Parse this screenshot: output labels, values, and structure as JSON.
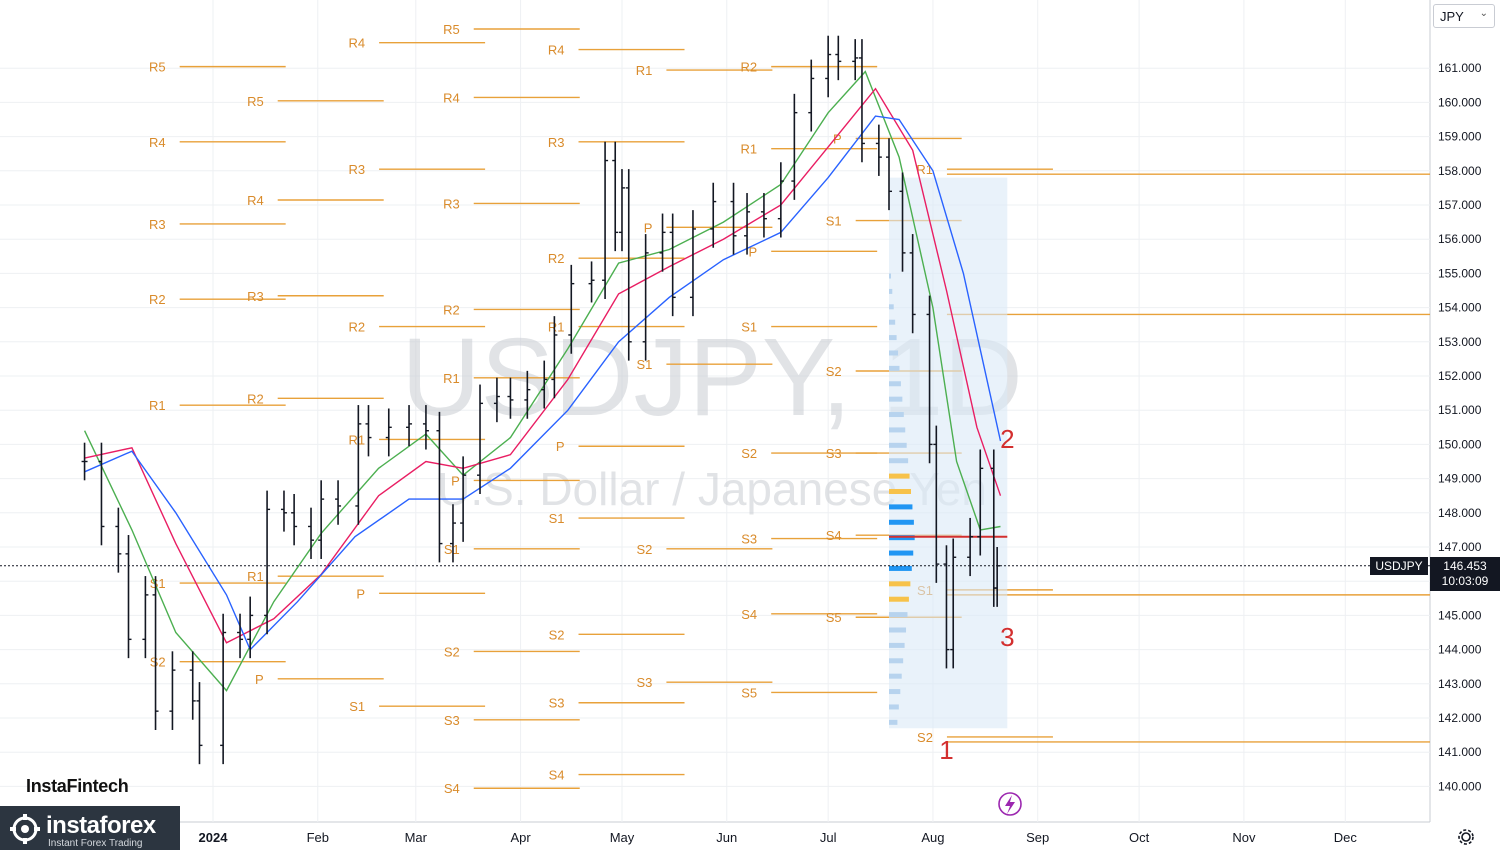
{
  "chart_data": {
    "type": "candlestick",
    "symbol": "USDJPY",
    "interval": "1D",
    "watermark": {
      "line1": "USDJPY, 1D",
      "line2": "U.S. Dollar / Japanese Yen"
    },
    "currency": "JPY",
    "ylim": [
      139.0,
      162.0
    ],
    "y_ticks": [
      "161.000",
      "160.000",
      "159.000",
      "158.000",
      "157.000",
      "156.000",
      "155.000",
      "154.000",
      "153.000",
      "152.000",
      "151.000",
      "150.000",
      "149.000",
      "148.000",
      "147.000",
      "146.000",
      "145.000",
      "144.000",
      "143.000",
      "142.000",
      "141.000",
      "140.000"
    ],
    "x_labels": [
      "2024",
      "Feb",
      "Mar",
      "Apr",
      "May",
      "Jun",
      "Jul",
      "Aug",
      "Sep",
      "Oct",
      "Nov",
      "Dec"
    ],
    "last_price": "146.453",
    "countdown": "10:03:09",
    "price_series": [
      [
        "2023-11-24",
        149.5
      ],
      [
        "2023-11-29",
        147.6
      ],
      [
        "2023-12-04",
        146.8
      ],
      [
        "2023-12-07",
        144.3
      ],
      [
        "2023-12-12",
        145.6
      ],
      [
        "2023-12-15",
        142.2
      ],
      [
        "2023-12-20",
        143.4
      ],
      [
        "2023-12-26",
        142.5
      ],
      [
        "2023-12-28",
        141.2
      ],
      [
        "2024-01-04",
        144.5
      ],
      [
        "2024-01-09",
        144.3
      ],
      [
        "2024-01-12",
        145.0
      ],
      [
        "2024-01-17",
        148.1
      ],
      [
        "2024-01-22",
        148.0
      ],
      [
        "2024-01-25",
        147.6
      ],
      [
        "2024-01-30",
        147.2
      ],
      [
        "2024-02-02",
        148.4
      ],
      [
        "2024-02-07",
        148.2
      ],
      [
        "2024-02-13",
        150.6
      ],
      [
        "2024-02-16",
        150.2
      ],
      [
        "2024-02-22",
        150.5
      ],
      [
        "2024-02-28",
        150.6
      ],
      [
        "2024-03-04",
        150.4
      ],
      [
        "2024-03-08",
        147.1
      ],
      [
        "2024-03-12",
        147.7
      ],
      [
        "2024-03-15",
        149.1
      ],
      [
        "2024-03-20",
        151.2
      ],
      [
        "2024-03-25",
        151.4
      ],
      [
        "2024-03-29",
        151.3
      ],
      [
        "2024-04-03",
        151.6
      ],
      [
        "2024-04-08",
        151.9
      ],
      [
        "2024-04-11",
        153.2
      ],
      [
        "2024-04-16",
        154.7
      ],
      [
        "2024-04-22",
        154.8
      ],
      [
        "2024-04-26",
        158.3
      ],
      [
        "2024-04-29",
        156.2
      ],
      [
        "2024-05-01",
        157.5
      ],
      [
        "2024-05-03",
        153.0
      ],
      [
        "2024-05-08",
        155.6
      ],
      [
        "2024-05-13",
        156.2
      ],
      [
        "2024-05-16",
        154.3
      ],
      [
        "2024-05-22",
        156.3
      ],
      [
        "2024-05-28",
        157.1
      ],
      [
        "2024-06-03",
        156.1
      ],
      [
        "2024-06-07",
        156.8
      ],
      [
        "2024-06-12",
        156.6
      ],
      [
        "2024-06-17",
        157.7
      ],
      [
        "2024-06-21",
        159.7
      ],
      [
        "2024-06-26",
        160.7
      ],
      [
        "2024-07-01",
        161.4
      ],
      [
        "2024-07-04",
        161.2
      ],
      [
        "2024-07-09",
        161.3
      ],
      [
        "2024-07-11",
        158.8
      ],
      [
        "2024-07-16",
        158.4
      ],
      [
        "2024-07-19",
        157.4
      ],
      [
        "2024-07-23",
        155.6
      ],
      [
        "2024-07-26",
        153.8
      ],
      [
        "2024-07-31",
        150.0
      ],
      [
        "2024-08-02",
        146.5
      ],
      [
        "2024-08-05",
        144.0
      ],
      [
        "2024-08-07",
        146.7
      ],
      [
        "2024-08-12",
        147.3
      ],
      [
        "2024-08-15",
        149.3
      ],
      [
        "2024-08-19",
        145.8
      ],
      [
        "2024-08-20",
        146.45
      ]
    ],
    "moving_averages": [
      {
        "color": "#4caf50",
        "points": [
          [
            "2023-11-24",
            150.4
          ],
          [
            "2023-12-08",
            147.5
          ],
          [
            "2023-12-21",
            144.5
          ],
          [
            "2024-01-05",
            142.8
          ],
          [
            "2024-01-19",
            145.4
          ],
          [
            "2024-02-02",
            147.4
          ],
          [
            "2024-02-19",
            149.3
          ],
          [
            "2024-03-04",
            150.3
          ],
          [
            "2024-03-15",
            149.1
          ],
          [
            "2024-03-29",
            150.2
          ],
          [
            "2024-04-15",
            152.8
          ],
          [
            "2024-04-30",
            155.3
          ],
          [
            "2024-05-15",
            155.7
          ],
          [
            "2024-05-31",
            156.5
          ],
          [
            "2024-06-17",
            157.6
          ],
          [
            "2024-07-01",
            159.7
          ],
          [
            "2024-07-12",
            160.9
          ],
          [
            "2024-07-22",
            158.4
          ],
          [
            "2024-08-01",
            154.0
          ],
          [
            "2024-08-08",
            149.5
          ],
          [
            "2024-08-15",
            147.5
          ],
          [
            "2024-08-21",
            147.6
          ]
        ]
      },
      {
        "color": "#e91e63",
        "points": [
          [
            "2023-11-24",
            149.6
          ],
          [
            "2023-12-08",
            149.9
          ],
          [
            "2023-12-21",
            147.1
          ],
          [
            "2024-01-05",
            144.2
          ],
          [
            "2024-01-19",
            144.9
          ],
          [
            "2024-02-02",
            146.2
          ],
          [
            "2024-02-19",
            148.5
          ],
          [
            "2024-03-04",
            149.5
          ],
          [
            "2024-03-15",
            149.3
          ],
          [
            "2024-03-29",
            149.7
          ],
          [
            "2024-04-15",
            151.9
          ],
          [
            "2024-04-30",
            154.4
          ],
          [
            "2024-05-15",
            155.2
          ],
          [
            "2024-05-31",
            156.0
          ],
          [
            "2024-06-17",
            157.0
          ],
          [
            "2024-07-01",
            158.7
          ],
          [
            "2024-07-15",
            160.4
          ],
          [
            "2024-07-26",
            158.6
          ],
          [
            "2024-08-05",
            154.5
          ],
          [
            "2024-08-14",
            150.5
          ],
          [
            "2024-08-21",
            148.5
          ]
        ]
      },
      {
        "color": "#2962ff",
        "points": [
          [
            "2023-11-24",
            149.2
          ],
          [
            "2023-12-08",
            149.8
          ],
          [
            "2023-12-21",
            148.0
          ],
          [
            "2024-01-05",
            145.6
          ],
          [
            "2024-01-12",
            144.0
          ],
          [
            "2024-01-26",
            145.4
          ],
          [
            "2024-02-12",
            147.3
          ],
          [
            "2024-02-28",
            148.4
          ],
          [
            "2024-03-15",
            148.4
          ],
          [
            "2024-03-29",
            149.3
          ],
          [
            "2024-04-15",
            151.0
          ],
          [
            "2024-04-30",
            153.0
          ],
          [
            "2024-05-15",
            154.3
          ],
          [
            "2024-05-31",
            155.4
          ],
          [
            "2024-06-17",
            156.2
          ],
          [
            "2024-07-01",
            157.8
          ],
          [
            "2024-07-15",
            159.6
          ],
          [
            "2024-07-22",
            159.5
          ],
          [
            "2024-08-01",
            158.0
          ],
          [
            "2024-08-10",
            155.0
          ],
          [
            "2024-08-21",
            150.1
          ]
        ]
      }
    ],
    "pivot_labels": [
      {
        "label": "R5",
        "x": "2023-12-18",
        "y": 160.9
      },
      {
        "label": "R4",
        "x": "2023-12-18",
        "y": 158.7
      },
      {
        "label": "R3",
        "x": "2023-12-18",
        "y": 156.3
      },
      {
        "label": "R2",
        "x": "2023-12-18",
        "y": 154.1
      },
      {
        "label": "R1",
        "x": "2023-12-18",
        "y": 151.0
      },
      {
        "label": "S1",
        "x": "2023-12-18",
        "y": 145.8
      },
      {
        "label": "S2",
        "x": "2023-12-18",
        "y": 143.5
      },
      {
        "label": "R5",
        "x": "2024-01-16",
        "y": 159.9
      },
      {
        "label": "R4",
        "x": "2024-01-16",
        "y": 157.0
      },
      {
        "label": "R3",
        "x": "2024-01-16",
        "y": 154.2
      },
      {
        "label": "R2",
        "x": "2024-01-16",
        "y": 151.2
      },
      {
        "label": "R1",
        "x": "2024-01-16",
        "y": 146.0
      },
      {
        "label": "P",
        "x": "2024-01-16",
        "y": 143.0
      },
      {
        "label": "R4",
        "x": "2024-02-15",
        "y": 161.6
      },
      {
        "label": "R3",
        "x": "2024-02-15",
        "y": 157.9
      },
      {
        "label": "R2",
        "x": "2024-02-15",
        "y": 153.3
      },
      {
        "label": "R1",
        "x": "2024-02-15",
        "y": 150.0
      },
      {
        "label": "P",
        "x": "2024-02-15",
        "y": 145.5
      },
      {
        "label": "S1",
        "x": "2024-02-15",
        "y": 142.2
      },
      {
        "label": "R5",
        "x": "2024-03-14",
        "y": 162.0
      },
      {
        "label": "R4",
        "x": "2024-03-14",
        "y": 160.0
      },
      {
        "label": "R3",
        "x": "2024-03-14",
        "y": 156.9
      },
      {
        "label": "R2",
        "x": "2024-03-14",
        "y": 153.8
      },
      {
        "label": "R1",
        "x": "2024-03-14",
        "y": 151.8
      },
      {
        "label": "P",
        "x": "2024-03-14",
        "y": 148.8
      },
      {
        "label": "S1",
        "x": "2024-03-14",
        "y": 146.8
      },
      {
        "label": "S2",
        "x": "2024-03-14",
        "y": 143.8
      },
      {
        "label": "S3",
        "x": "2024-03-14",
        "y": 141.8
      },
      {
        "label": "S4",
        "x": "2024-03-14",
        "y": 139.8
      },
      {
        "label": "R4",
        "x": "2024-04-14",
        "y": 161.4
      },
      {
        "label": "R3",
        "x": "2024-04-14",
        "y": 158.7
      },
      {
        "label": "R2",
        "x": "2024-04-14",
        "y": 155.3
      },
      {
        "label": "R1",
        "x": "2024-04-14",
        "y": 153.3
      },
      {
        "label": "P",
        "x": "2024-04-14",
        "y": 149.8
      },
      {
        "label": "S1",
        "x": "2024-04-14",
        "y": 147.7
      },
      {
        "label": "S2",
        "x": "2024-04-14",
        "y": 144.3
      },
      {
        "label": "S3",
        "x": "2024-04-14",
        "y": 142.3
      },
      {
        "label": "S4",
        "x": "2024-04-14",
        "y": 140.2
      },
      {
        "label": "R1",
        "x": "2024-05-10",
        "y": 160.8
      },
      {
        "label": "P",
        "x": "2024-05-10",
        "y": 156.2
      },
      {
        "label": "S1",
        "x": "2024-05-10",
        "y": 152.2
      },
      {
        "label": "S2",
        "x": "2024-05-10",
        "y": 146.8
      },
      {
        "label": "S3",
        "x": "2024-05-10",
        "y": 142.9
      },
      {
        "label": "R2",
        "x": "2024-06-10",
        "y": 160.9
      },
      {
        "label": "R1",
        "x": "2024-06-10",
        "y": 158.5
      },
      {
        "label": "P",
        "x": "2024-06-10",
        "y": 155.5
      },
      {
        "label": "S1",
        "x": "2024-06-10",
        "y": 153.3
      },
      {
        "label": "S2",
        "x": "2024-06-10",
        "y": 149.6
      },
      {
        "label": "S3",
        "x": "2024-06-10",
        "y": 147.1
      },
      {
        "label": "S4",
        "x": "2024-06-10",
        "y": 144.9
      },
      {
        "label": "S5",
        "x": "2024-06-10",
        "y": 142.6
      },
      {
        "label": "P",
        "x": "2024-07-05",
        "y": 158.8
      },
      {
        "label": "S1",
        "x": "2024-07-05",
        "y": 156.4
      },
      {
        "label": "S2",
        "x": "2024-07-05",
        "y": 152.0
      },
      {
        "label": "S3",
        "x": "2024-07-05",
        "y": 149.6
      },
      {
        "label": "S4",
        "x": "2024-07-05",
        "y": 147.2
      },
      {
        "label": "S5",
        "x": "2024-07-05",
        "y": 144.8
      },
      {
        "label": "R1",
        "x": "2024-08-01",
        "y": 157.9
      },
      {
        "label": "S1",
        "x": "2024-08-01",
        "y": 145.6
      },
      {
        "label": "S2",
        "x": "2024-08-01",
        "y": 141.3
      }
    ],
    "annotations": [
      {
        "text": "1",
        "x": "2024-08-05",
        "y": 140.8
      },
      {
        "text": "2",
        "x": "2024-08-23",
        "y": 149.9
      },
      {
        "text": "3",
        "x": "2024-08-23",
        "y": 144.1
      }
    ]
  },
  "branding": {
    "watermark": "InstaFintech",
    "name": "instaforex",
    "tagline": "Instant Forex Trading"
  },
  "icons": {
    "lightning": "lightning-icon",
    "settings": "gear-icon"
  }
}
